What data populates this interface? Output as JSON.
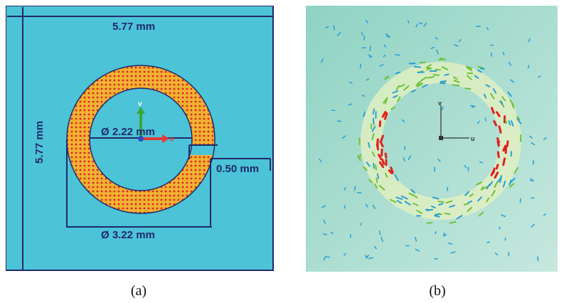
{
  "panel_a": {
    "dim_width": "5.77 mm",
    "dim_height": "5.77 mm",
    "dim_inner_diameter": "Ø 2.22 mm",
    "dim_gap": "0.50 mm",
    "dim_outer_diameter": "Ø 3.22 mm",
    "axis_v": "v",
    "axis_u": "u",
    "colors": {
      "substrate": "#4cc3d6",
      "ring": "#f2b233",
      "dots": "#d7261f",
      "dim_line": "#1f2a6b"
    }
  },
  "panel_b": {
    "axis_v": "v",
    "axis_u": "u",
    "colors": {
      "background": "#a9dccf",
      "arrow_high": "#e02020",
      "arrow_mid": "#6fc23a",
      "arrow_low": "#2a9fd6"
    }
  },
  "captions": {
    "a": "(a)",
    "b": "(b)"
  }
}
